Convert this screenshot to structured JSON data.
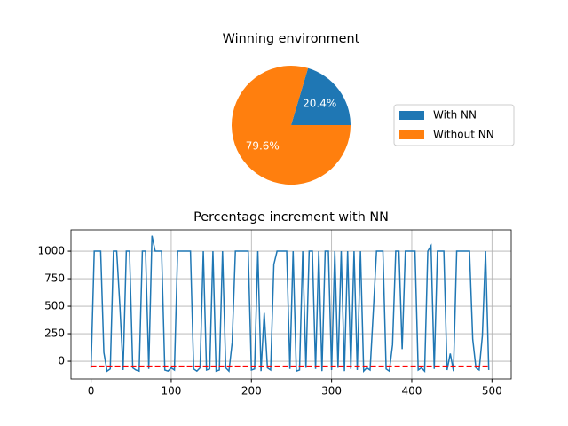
{
  "chart_data": [
    {
      "type": "pie",
      "title": "Winning environment",
      "categories": [
        "With NN",
        "Without NN"
      ],
      "values": [
        20.4,
        79.6
      ],
      "value_labels": [
        "20.4%",
        "79.6%"
      ],
      "colors": [
        "#1f77b4",
        "#ff7f0e"
      ],
      "legend": "right"
    },
    {
      "type": "line",
      "title": "Percentage increment with NN",
      "x": [
        0,
        4,
        8,
        12,
        16,
        20,
        24,
        28,
        32,
        36,
        40,
        44,
        48,
        52,
        56,
        60,
        64,
        68,
        72,
        76,
        80,
        84,
        88,
        92,
        96,
        100,
        104,
        108,
        112,
        116,
        120,
        124,
        128,
        132,
        136,
        140,
        144,
        148,
        152,
        156,
        160,
        164,
        168,
        172,
        176,
        180,
        184,
        188,
        192,
        196,
        200,
        204,
        208,
        212,
        216,
        220,
        224,
        228,
        232,
        236,
        240,
        244,
        248,
        252,
        256,
        260,
        264,
        268,
        272,
        276,
        280,
        284,
        288,
        292,
        296,
        300,
        304,
        308,
        312,
        316,
        320,
        324,
        328,
        332,
        336,
        340,
        344,
        348,
        352,
        356,
        360,
        364,
        368,
        372,
        376,
        380,
        384,
        388,
        392,
        396,
        400,
        404,
        408,
        412,
        416,
        420,
        424,
        428,
        432,
        436,
        440,
        444,
        448,
        452,
        456,
        460,
        464,
        468,
        472,
        476,
        480,
        484,
        488,
        492,
        496
      ],
      "series": [
        {
          "color": "#1f77b4",
          "values": [
            -60,
            1000,
            1000,
            1000,
            80,
            -90,
            -70,
            1000,
            1000,
            500,
            -80,
            1000,
            1000,
            -60,
            -80,
            -90,
            1000,
            1000,
            -70,
            1140,
            1000,
            1000,
            1000,
            -80,
            -90,
            -60,
            -80,
            1000,
            1000,
            1000,
            1000,
            1000,
            -70,
            -90,
            -60,
            1000,
            -80,
            -70,
            1000,
            -90,
            -80,
            1000,
            -60,
            -90,
            170,
            1000,
            1000,
            1000,
            1000,
            1000,
            -80,
            -70,
            1000,
            -90,
            440,
            -60,
            -80,
            880,
            1000,
            1000,
            1000,
            1000,
            -70,
            1000,
            -90,
            -80,
            1000,
            -60,
            1000,
            1000,
            -70,
            1000,
            -90,
            1000,
            1000,
            -80,
            1000,
            -60,
            1000,
            -90,
            1000,
            -70,
            1000,
            -80,
            1000,
            -90,
            -60,
            -80,
            450,
            1000,
            1000,
            1000,
            -70,
            -90,
            150,
            1000,
            1000,
            110,
            1000,
            1000,
            1000,
            1000,
            -80,
            -60,
            -90,
            1000,
            1050,
            -70,
            1000,
            1000,
            1000,
            -80,
            70,
            -90,
            1000,
            1000,
            1000,
            1000,
            1000,
            200,
            -60,
            -80,
            230,
            1000,
            -80
          ]
        }
      ],
      "hline": {
        "value": -45,
        "color": "#ff0000",
        "style": "dashed"
      },
      "xlim": [
        -25,
        524
      ],
      "ylim": [
        -161,
        1194
      ],
      "xticks": [
        0,
        100,
        200,
        300,
        400,
        500
      ],
      "yticks": [
        0,
        250,
        500,
        750,
        1000
      ],
      "grid": true
    }
  ]
}
